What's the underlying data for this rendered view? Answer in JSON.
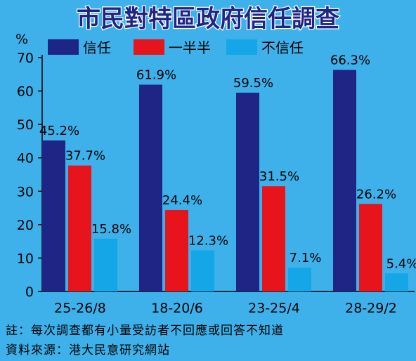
{
  "title": "市民對特區政府信任調查",
  "colors": {
    "background": "#3fb1ea",
    "trust": "#1f2585",
    "half": "#e8141c",
    "distrust": "#14a6e6",
    "title_fill": "#1f2585"
  },
  "chart_data": {
    "type": "bar",
    "title": "市民對特區政府信任調查",
    "ylabel": "%",
    "xlabel": "",
    "ylim": [
      0,
      70
    ],
    "yticks": [
      0,
      10,
      20,
      30,
      40,
      50,
      60,
      70
    ],
    "categories": [
      "25-26/8",
      "18-20/6",
      "23-25/4",
      "28-29/2"
    ],
    "series": [
      {
        "name": "信任",
        "values": [
          45.2,
          61.9,
          59.5,
          66.3
        ],
        "labels": [
          "45.2%",
          "61.9%",
          "59.5%",
          "66.3%"
        ]
      },
      {
        "name": "一半半",
        "values": [
          37.7,
          24.4,
          31.5,
          26.2
        ],
        "labels": [
          "37.7%",
          "24.4%",
          "31.5%",
          "26.2%"
        ]
      },
      {
        "name": "不信任",
        "values": [
          15.8,
          12.3,
          7.1,
          5.4
        ],
        "labels": [
          "15.8%",
          "12.3%",
          "7.1%",
          "5.4%"
        ]
      }
    ],
    "legend": "top",
    "grid": false
  },
  "notes": {
    "note1": "註：每次調查都有小量受訪者不回應或回答不知道",
    "note2": "資料來源：港大民意研究網站"
  }
}
